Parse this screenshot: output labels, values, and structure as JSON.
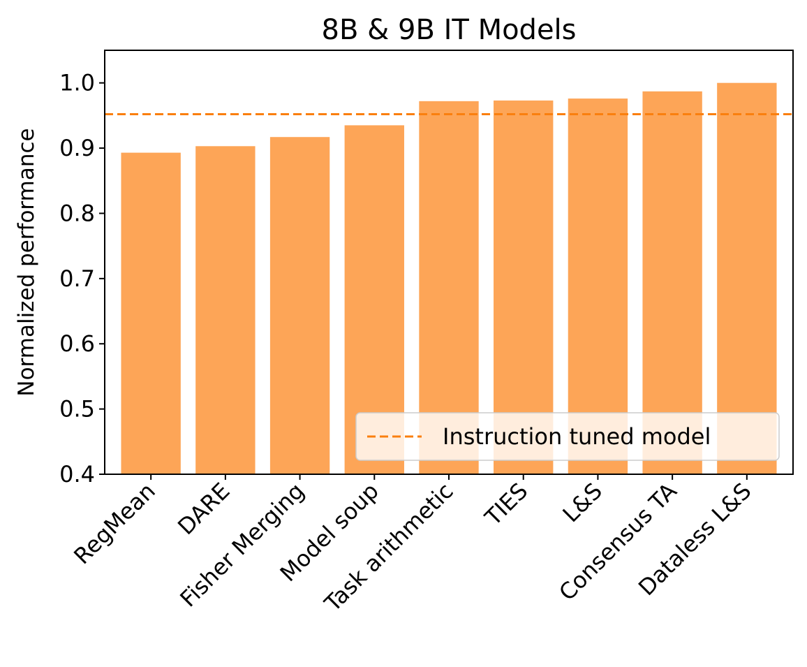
{
  "chart_data": {
    "type": "bar",
    "title": "8B & 9B IT Models",
    "xlabel": "",
    "ylabel": "Normalized performance",
    "categories": [
      "RegMean",
      "DARE",
      "Fisher Merging",
      "Model soup",
      "Task arithmetic",
      "TIES",
      "L&S",
      "Consensus TA",
      "Dataless L&S"
    ],
    "values": [
      0.893,
      0.903,
      0.917,
      0.935,
      0.972,
      0.973,
      0.976,
      0.987,
      1.0
    ],
    "ylim": [
      0.4,
      1.05
    ],
    "yticks": [
      "0.4",
      "0.5",
      "0.6",
      "0.7",
      "0.8",
      "0.9",
      "1.0"
    ],
    "reference_line": {
      "label": "Instruction tuned model",
      "value": 0.952,
      "style": "dashed"
    },
    "legend_position": "lower right",
    "grid": false,
    "colors": {
      "bar": "#fda557",
      "reference_line": "#fa7f0e"
    }
  }
}
